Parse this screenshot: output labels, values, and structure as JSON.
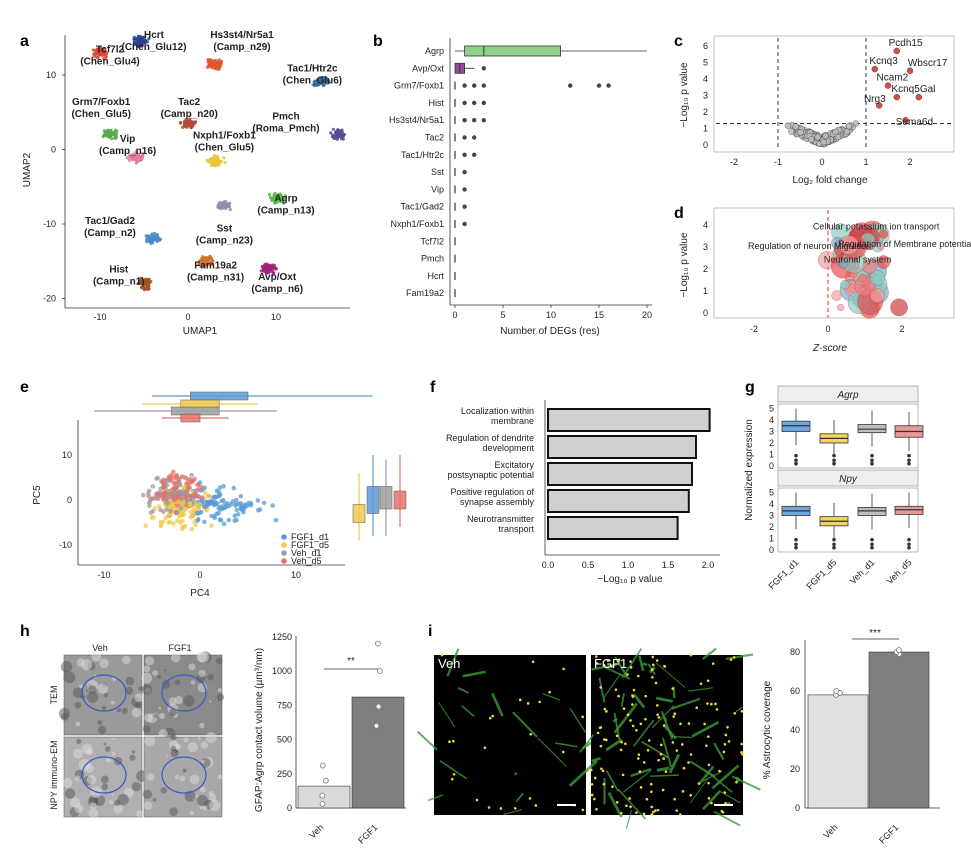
{
  "panels": {
    "a": {
      "label": "a",
      "xlabel": "UMAP1",
      "ylabel": "UMAP2",
      "xticks": [
        "-10",
        "0",
        "10"
      ],
      "yticks": [
        "10",
        "0",
        "-10",
        "-20"
      ],
      "clusters": [
        {
          "name": "Tcf7l2",
          "sub": "(Chen_Glu4)",
          "x": -11,
          "y": 13,
          "color": "#d9432f"
        },
        {
          "name": "Hcrt",
          "sub": "(Chen_Glu12)",
          "x": -6.5,
          "y": 14.5,
          "color": "#2b3f8f"
        },
        {
          "name": "Hs3st4/Nr5a1",
          "sub": "(Camp_n29)",
          "x": 2,
          "y": 11.5,
          "color": "#e0562a"
        },
        {
          "name": "Tac1/Htr2c",
          "sub": "(Chen_Glu6)",
          "x": 14,
          "y": 9,
          "color": "#3a6ea5"
        },
        {
          "name": "Grm7/Foxb1",
          "sub": "(Chen_Glu5)",
          "x": -10,
          "y": 2,
          "color": "#5aa84a"
        },
        {
          "name": "Tac2",
          "sub": "(Camp_n20)",
          "x": -1,
          "y": 3.5,
          "color": "#b34a3a"
        },
        {
          "name": "Pmch",
          "sub": "(Roma_Pmch)",
          "x": 16,
          "y": 2,
          "color": "#5a4a9a"
        },
        {
          "name": "Vip",
          "sub": "(Camp_n16)",
          "x": -7,
          "y": -1,
          "color": "#e07aa0"
        },
        {
          "name": "Nxph1/Foxb1",
          "sub": "(Chen_Glu5)",
          "x": 2,
          "y": -1.5,
          "color": "#e8c43a"
        },
        {
          "name": "Agrp",
          "sub": "(Camp_n13)",
          "x": 9,
          "y": -6.5,
          "color": "#5ab84a"
        },
        {
          "name": "Tac1/Gad2",
          "sub": "(Camp_n2)",
          "x": -5,
          "y": -12,
          "color": "#4a8ac8"
        },
        {
          "name": "Sst",
          "sub": "(Camp_n23)",
          "x": 3,
          "y": -7.5,
          "color": "#9a8ab0"
        },
        {
          "name": "Hist",
          "sub": "(Camp_n1)",
          "x": -6,
          "y": -18,
          "color": "#a05020"
        },
        {
          "name": "Fam19a2",
          "sub": "(Camp_n31)",
          "x": 1,
          "y": -15,
          "color": "#d07030"
        },
        {
          "name": "Avp/Oxt",
          "sub": "(Camp_n6)",
          "x": 8,
          "y": -16,
          "color": "#a0207a"
        }
      ]
    },
    "b": {
      "label": "b",
      "xlabel": "Number of DEGs (res)",
      "xticks": [
        "0",
        "5",
        "10",
        "15",
        "20"
      ],
      "rows": [
        {
          "name": "Agrp",
          "q1": 1,
          "med": 3,
          "q3": 11,
          "min": 0,
          "max": 20,
          "color": "#8fd18a",
          "out": []
        },
        {
          "name": "Avp/Oxt",
          "q1": 0,
          "med": 0.5,
          "q3": 1,
          "min": 0,
          "max": 2,
          "color": "#9a4a9a",
          "out": [
            3
          ]
        },
        {
          "name": "Grm7/Foxb1",
          "q1": 0,
          "med": 0,
          "q3": 0,
          "min": 0,
          "max": 0,
          "color": "#aaa",
          "out": [
            1,
            2,
            3,
            12,
            15,
            16
          ]
        },
        {
          "name": "Hist",
          "q1": 0,
          "med": 0,
          "q3": 0,
          "min": 0,
          "max": 0,
          "color": "#aaa",
          "out": [
            1,
            2,
            3
          ]
        },
        {
          "name": "Hs3st4/Nr5a1",
          "q1": 0,
          "med": 0,
          "q3": 0,
          "min": 0,
          "max": 0,
          "color": "#aaa",
          "out": [
            1,
            2,
            3
          ]
        },
        {
          "name": "Tac2",
          "q1": 0,
          "med": 0,
          "q3": 0,
          "min": 0,
          "max": 0,
          "color": "#aaa",
          "out": [
            1,
            2
          ]
        },
        {
          "name": "Tac1/Htr2c",
          "q1": 0,
          "med": 0,
          "q3": 0,
          "min": 0,
          "max": 0,
          "color": "#aaa",
          "out": [
            1,
            2
          ]
        },
        {
          "name": "Sst",
          "q1": 0,
          "med": 0,
          "q3": 0,
          "min": 0,
          "max": 0,
          "color": "#aaa",
          "out": [
            1
          ]
        },
        {
          "name": "Vip",
          "q1": 0,
          "med": 0,
          "q3": 0,
          "min": 0,
          "max": 0,
          "color": "#aaa",
          "out": [
            1
          ]
        },
        {
          "name": "Tac1/Gad2",
          "q1": 0,
          "med": 0,
          "q3": 0,
          "min": 0,
          "max": 0,
          "color": "#aaa",
          "out": [
            1
          ]
        },
        {
          "name": "Nxph1/Foxb1",
          "q1": 0,
          "med": 0,
          "q3": 0,
          "min": 0,
          "max": 0,
          "color": "#aaa",
          "out": [
            1
          ]
        },
        {
          "name": "Tcf7l2",
          "q1": 0,
          "med": 0,
          "q3": 0,
          "min": 0,
          "max": 0,
          "color": "#aaa",
          "out": []
        },
        {
          "name": "Pmch",
          "q1": 0,
          "med": 0,
          "q3": 0,
          "min": 0,
          "max": 0,
          "color": "#aaa",
          "out": []
        },
        {
          "name": "Hcrt",
          "q1": 0,
          "med": 0,
          "q3": 0,
          "min": 0,
          "max": 0,
          "color": "#aaa",
          "out": []
        },
        {
          "name": "Fam19a2",
          "q1": 0,
          "med": 0,
          "q3": 0,
          "min": 0,
          "max": 0,
          "color": "#aaa",
          "out": []
        }
      ]
    },
    "c": {
      "label": "c",
      "xlabel": "Log₂ fold change",
      "ylabel": "−Log₁₀ p value",
      "xticks": [
        "-2",
        "-1",
        "0",
        "1",
        "2"
      ],
      "yticks": [
        "0",
        "1",
        "2",
        "3",
        "4",
        "5",
        "6"
      ],
      "genes": [
        "Pcdh15",
        "Kcnq3",
        "Wbscr17",
        "Ncam2",
        "Nrg3",
        "Kcnq5",
        "Gal",
        "Sema6d"
      ]
    },
    "d": {
      "label": "d",
      "xlabel": "Z-score",
      "ylabel": "−Log₁₀ p value",
      "xticks": [
        "-2",
        "0",
        "2"
      ],
      "yticks": [
        "0",
        "1",
        "2",
        "3",
        "4"
      ],
      "terms": [
        "Cellular potassium ion transport",
        "Regulation of neuron Migration",
        "Regulation of Membrane potential",
        "Neuronal system"
      ]
    },
    "e": {
      "label": "e",
      "xlabel": "PC4",
      "ylabel": "PC5",
      "xticks": [
        "-10",
        "0",
        "10"
      ],
      "yticks": [
        "10",
        "0",
        "-10"
      ],
      "legend": [
        {
          "name": "FGF1_d1",
          "color": "#5b9bd5"
        },
        {
          "name": "FGF1_d5",
          "color": "#f2c94c"
        },
        {
          "name": "Veh_d1",
          "color": "#9e9e9e"
        },
        {
          "name": "Veh_d5",
          "color": "#e8716b"
        }
      ]
    },
    "f": {
      "label": "f",
      "xlabel": "−Log₁₀ p value",
      "xticks": [
        "0.0",
        "0.5",
        "1.0",
        "1.5",
        "2.0"
      ],
      "bars": [
        {
          "name": "Localization within membrane",
          "value": 2.02
        },
        {
          "name": "Regulation of dendrite development",
          "value": 1.85
        },
        {
          "name": "Excitatory postsynaptic potential",
          "value": 1.8
        },
        {
          "name": "Positive regulation of synapse assembly",
          "value": 1.76
        },
        {
          "name": "Neurotransmitter transport",
          "value": 1.62
        }
      ]
    },
    "g": {
      "label": "g",
      "ylabel": "Normalized expression",
      "genes": [
        "Agrp",
        "Npy"
      ],
      "groups": [
        "FGF1_d1",
        "FGF1_d5",
        "Veh_d1",
        "Veh_d5"
      ],
      "yticks": [
        "0",
        "1",
        "2",
        "3",
        "4",
        "5"
      ],
      "colors": [
        "#6fa8dc",
        "#f4d35e",
        "#bdbdbd",
        "#ea9999"
      ],
      "agrp": [
        {
          "q1": 3.0,
          "med": 3.5,
          "q3": 3.9
        },
        {
          "q1": 2.0,
          "med": 2.4,
          "q3": 2.8
        },
        {
          "q1": 2.9,
          "med": 3.2,
          "q3": 3.6
        },
        {
          "q1": 2.5,
          "med": 3.0,
          "q3": 3.5
        }
      ],
      "npy": [
        {
          "q1": 3.0,
          "med": 3.4,
          "q3": 3.8
        },
        {
          "q1": 2.1,
          "med": 2.5,
          "q3": 2.9
        },
        {
          "q1": 3.0,
          "med": 3.4,
          "q3": 3.7
        },
        {
          "q1": 3.1,
          "med": 3.5,
          "q3": 3.8
        }
      ]
    },
    "h": {
      "label": "h",
      "cols": [
        "Veh",
        "FGF1"
      ],
      "rows": [
        "TEM",
        "NPY immuno-EM"
      ],
      "ylabel": "GFAP:Agrp contact volume (µm³/nm)",
      "yticks": [
        "0",
        "250",
        "500",
        "750",
        "1000",
        "1250"
      ],
      "bars": [
        {
          "name": "Veh",
          "value": 160,
          "color": "#d9d9d9"
        },
        {
          "name": "FGF1",
          "value": 810,
          "color": "#7f7f7f"
        }
      ],
      "points": {
        "Veh": [
          30,
          90,
          200,
          310
        ],
        "FGF1": [
          600,
          740,
          1000,
          1200
        ]
      },
      "sig": "**"
    },
    "i": {
      "label": "i",
      "images": [
        "Veh",
        "FGF1"
      ],
      "ylabel": "% Astrocytic coverage",
      "yticks": [
        "0",
        "20",
        "40",
        "60",
        "80"
      ],
      "bars": [
        {
          "name": "Veh",
          "value": 58,
          "color": "#e0e0e0"
        },
        {
          "name": "FGF1",
          "value": 80,
          "color": "#7f7f7f"
        }
      ],
      "points": {
        "Veh": [
          58,
          59,
          60
        ],
        "FGF1": [
          79,
          80,
          81
        ]
      },
      "sig": "***"
    }
  }
}
